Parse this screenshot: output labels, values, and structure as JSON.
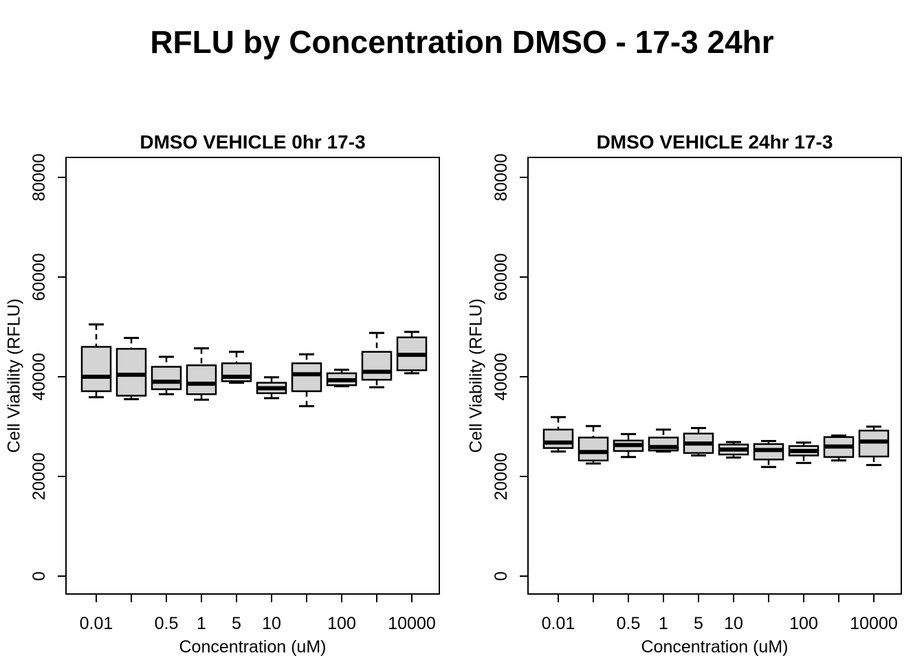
{
  "main_title": "RFLU by Concentration DMSO - 17-3 24hr",
  "chart_data": [
    {
      "type": "boxplot",
      "title": "DMSO VEHICLE 0hr 17-3",
      "xlabel": "Concentration (uM)",
      "ylabel": "Cell Viability (RFLU)",
      "ylim": [
        0,
        84000
      ],
      "yticks": [
        0,
        20000,
        40000,
        60000,
        80000
      ],
      "xtick_labels": [
        "0.01",
        "",
        "0.5",
        "1",
        "5",
        "10",
        "",
        "100",
        "",
        "10000"
      ],
      "grid": false,
      "box_fill": "#d4d4d4",
      "boxes": [
        {
          "min": 35900,
          "q1": 37100,
          "median": 40000,
          "q3": 46000,
          "max": 50500
        },
        {
          "min": 35500,
          "q1": 36200,
          "median": 40400,
          "q3": 45600,
          "max": 47800
        },
        {
          "min": 36500,
          "q1": 37500,
          "median": 39000,
          "q3": 42000,
          "max": 44000
        },
        {
          "min": 35400,
          "q1": 36500,
          "median": 38600,
          "q3": 42300,
          "max": 45700
        },
        {
          "min": 38800,
          "q1": 39100,
          "median": 40000,
          "q3": 42700,
          "max": 45000
        },
        {
          "min": 35700,
          "q1": 36700,
          "median": 37700,
          "q3": 38800,
          "max": 39900
        },
        {
          "min": 34100,
          "q1": 37100,
          "median": 40500,
          "q3": 42700,
          "max": 44500
        },
        {
          "min": 38100,
          "q1": 38300,
          "median": 39300,
          "q3": 40700,
          "max": 41400
        },
        {
          "min": 37900,
          "q1": 39400,
          "median": 41000,
          "q3": 45000,
          "max": 48800
        },
        {
          "min": 40700,
          "q1": 41300,
          "median": 44400,
          "q3": 47900,
          "max": 49000
        }
      ]
    },
    {
      "type": "boxplot",
      "title": "DMSO VEHICLE 24hr 17-3",
      "xlabel": "Concentration (uM)",
      "ylabel": "Cell Viability (RFLU)",
      "ylim": [
        0,
        84000
      ],
      "yticks": [
        0,
        20000,
        40000,
        60000,
        80000
      ],
      "xtick_labels": [
        "0.01",
        "",
        "0.5",
        "1",
        "5",
        "10",
        "",
        "100",
        "",
        "10000"
      ],
      "grid": false,
      "box_fill": "#d4d4d4",
      "boxes": [
        {
          "min": 25000,
          "q1": 25700,
          "median": 26800,
          "q3": 29400,
          "max": 31900
        },
        {
          "min": 22600,
          "q1": 23200,
          "median": 24900,
          "q3": 27800,
          "max": 30100
        },
        {
          "min": 23900,
          "q1": 25100,
          "median": 26300,
          "q3": 27200,
          "max": 28500
        },
        {
          "min": 25000,
          "q1": 25200,
          "median": 25900,
          "q3": 27800,
          "max": 29400
        },
        {
          "min": 24200,
          "q1": 24700,
          "median": 26600,
          "q3": 28600,
          "max": 29700
        },
        {
          "min": 23800,
          "q1": 24400,
          "median": 25400,
          "q3": 26400,
          "max": 26900
        },
        {
          "min": 21900,
          "q1": 23400,
          "median": 25300,
          "q3": 26500,
          "max": 27100
        },
        {
          "min": 22700,
          "q1": 24200,
          "median": 25100,
          "q3": 26100,
          "max": 26800
        },
        {
          "min": 23200,
          "q1": 23900,
          "median": 26000,
          "q3": 27900,
          "max": 28200
        },
        {
          "min": 22300,
          "q1": 24000,
          "median": 27000,
          "q3": 29200,
          "max": 30000
        }
      ]
    }
  ],
  "colors": {
    "line": "#000000",
    "box_fill": "#d4d4d4",
    "background": "#ffffff"
  }
}
